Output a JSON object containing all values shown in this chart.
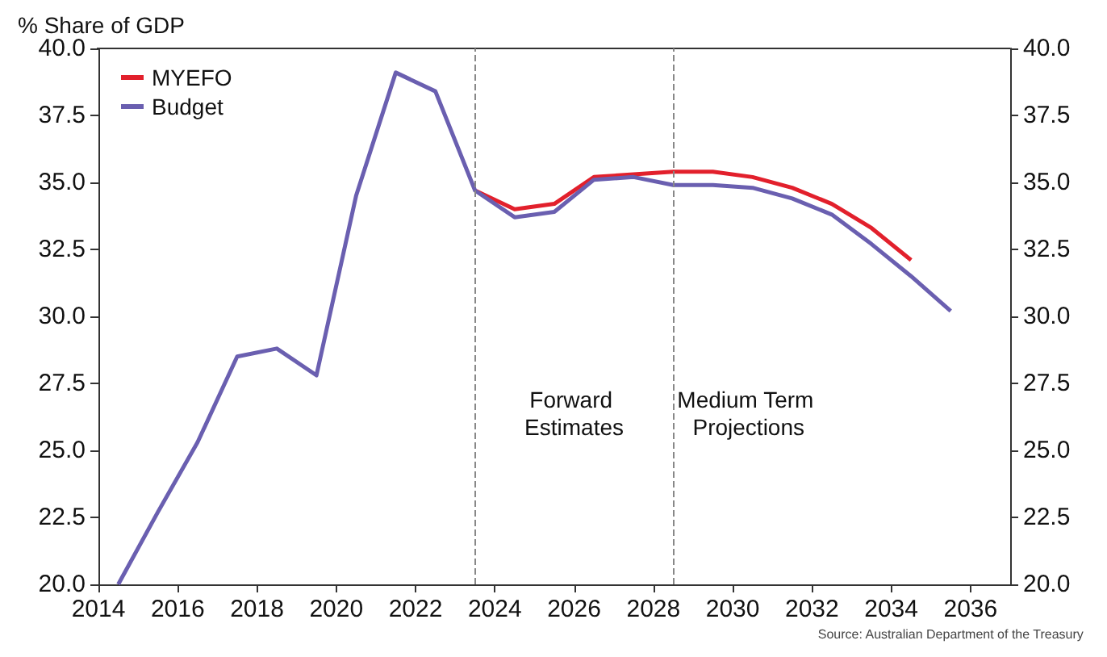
{
  "chart_data": {
    "type": "line",
    "ylabel": "% Share of GDP",
    "series": [
      {
        "name": "MYEFO",
        "color": "#e2202c",
        "x": [
          2023.5,
          2024.5,
          2025.5,
          2026.5,
          2027.5,
          2028.5,
          2029.5,
          2030.5,
          2031.5,
          2032.5,
          2033.5,
          2034.5
        ],
        "values": [
          34.7,
          34.0,
          34.2,
          35.2,
          35.3,
          35.4,
          35.4,
          35.2,
          34.8,
          34.2,
          33.3,
          32.1
        ]
      },
      {
        "name": "Budget",
        "color": "#6a5fb0",
        "x": [
          2014.5,
          2015.5,
          2016.5,
          2017.5,
          2018.5,
          2019.5,
          2020.5,
          2021.5,
          2022.5,
          2023.5,
          2024.5,
          2025.5,
          2026.5,
          2027.5,
          2028.5,
          2029.5,
          2030.5,
          2031.5,
          2032.5,
          2033.5,
          2034.5,
          2035.5
        ],
        "values": [
          20.0,
          22.7,
          25.3,
          28.5,
          28.8,
          27.8,
          34.5,
          39.1,
          38.4,
          34.7,
          33.7,
          33.9,
          35.1,
          35.2,
          34.9,
          34.9,
          34.8,
          34.4,
          33.8,
          32.7,
          31.5,
          30.2
        ]
      }
    ],
    "xlim": [
      2014,
      2037
    ],
    "xticks": [
      2014,
      2016,
      2018,
      2020,
      2022,
      2024,
      2026,
      2028,
      2030,
      2032,
      2034,
      2036
    ],
    "ylim": [
      20,
      40
    ],
    "yticks": [
      {
        "value": 20,
        "label": "20.0"
      },
      {
        "value": 22.5,
        "label": "22.5"
      },
      {
        "value": 25,
        "label": "25.0"
      },
      {
        "value": 27.5,
        "label": "27.5"
      },
      {
        "value": 30,
        "label": "30.0"
      },
      {
        "value": 32.5,
        "label": "32.5"
      },
      {
        "value": 35,
        "label": "35.0"
      },
      {
        "value": 37.5,
        "label": "37.5"
      },
      {
        "value": 40,
        "label": "40.0"
      }
    ],
    "y2lim": [
      20,
      40
    ],
    "y2ticks": [
      {
        "value": 20,
        "label": "20.0"
      },
      {
        "value": 22.5,
        "label": "22.5"
      },
      {
        "value": 25,
        "label": "25.0"
      },
      {
        "value": 27.5,
        "label": "27.5"
      },
      {
        "value": 30,
        "label": "30.0"
      },
      {
        "value": 32.5,
        "label": "32.5"
      },
      {
        "value": 35,
        "label": "35.0"
      },
      {
        "value": 37.5,
        "label": "37.5"
      },
      {
        "value": 40,
        "label": "40.0"
      }
    ],
    "ref_lines": [
      {
        "axis": "x",
        "value": 2023.5,
        "color": "#888888",
        "line_style": "dashed"
      },
      {
        "axis": "x",
        "value": 2028.5,
        "color": "#888888",
        "line_style": "dashed"
      }
    ],
    "annotations": [
      "Forward Estimates",
      "Medium Term Projections",
      "Source: Australian Department of the Treasury"
    ],
    "legend": "top left",
    "grid": false,
    "marker": "none",
    "line_style": "solid"
  }
}
